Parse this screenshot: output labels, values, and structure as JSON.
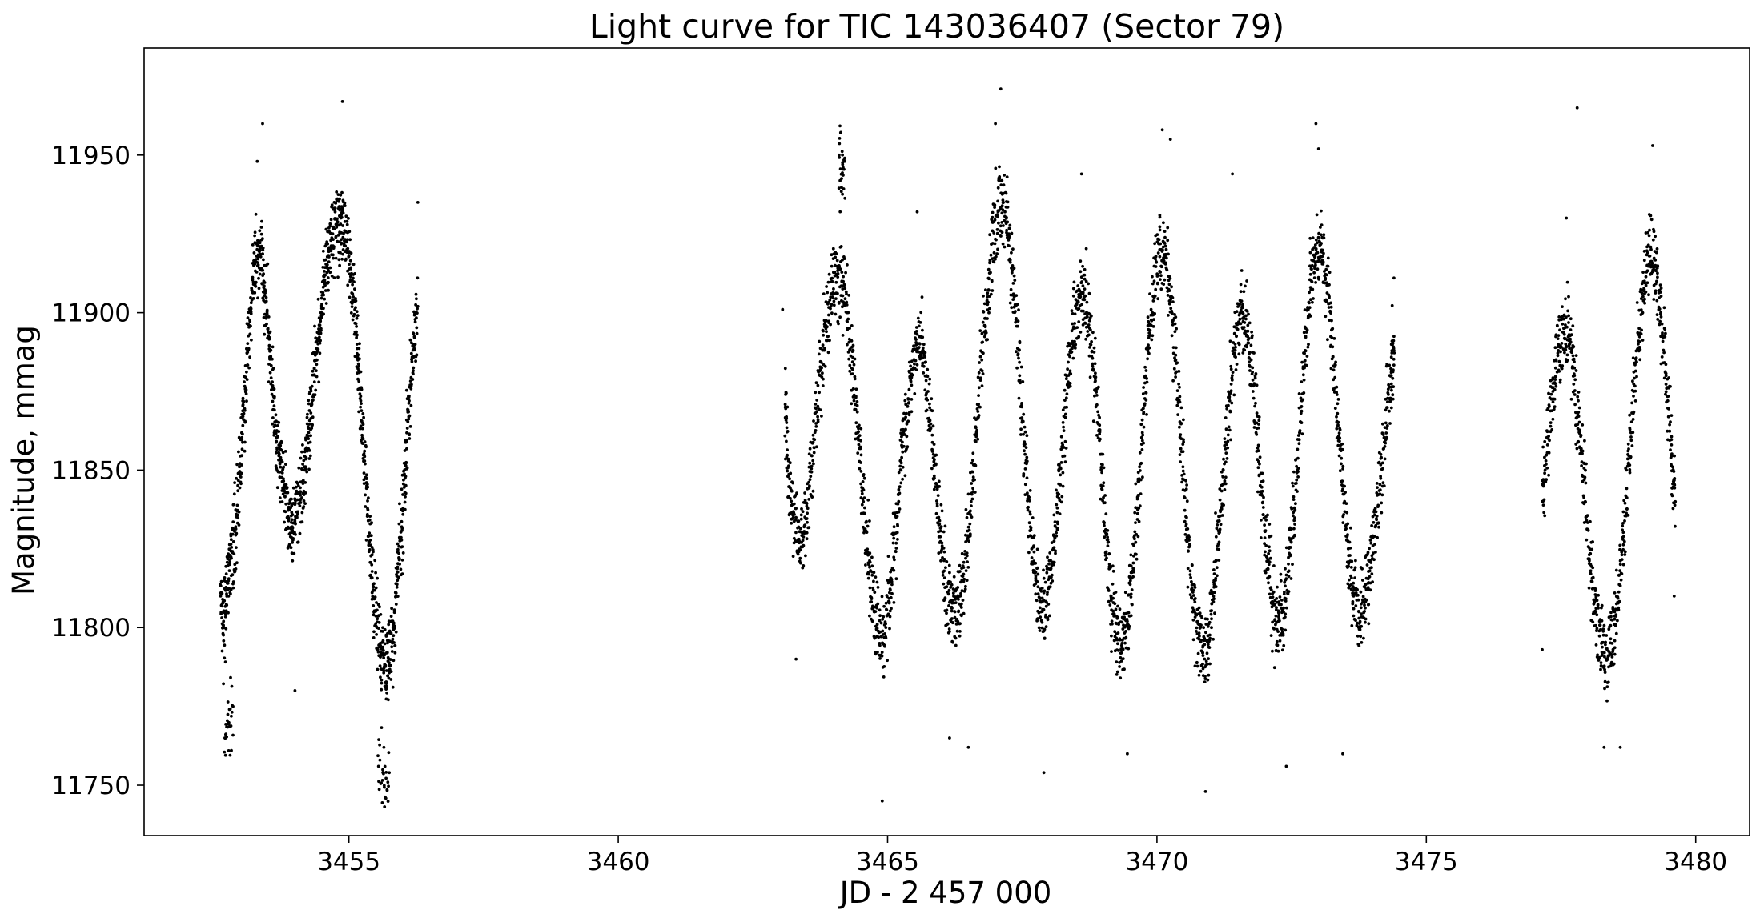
{
  "chart_data": {
    "type": "scatter",
    "title": "Light curve for TIC 143036407 (Sector 79)",
    "xlabel": "JD - 2 457 000",
    "ylabel": "Magnitude, mmag",
    "xlim": [
      3451.2,
      3481.0
    ],
    "ylim": [
      11734.0,
      11984.0
    ],
    "x_ticks": [
      {
        "value": 3455,
        "label": "3455"
      },
      {
        "value": 3460,
        "label": "3460"
      },
      {
        "value": 3465,
        "label": "3465"
      },
      {
        "value": 3470,
        "label": "3470"
      },
      {
        "value": 3475,
        "label": "3475"
      },
      {
        "value": 3480,
        "label": "3480"
      }
    ],
    "y_ticks": [
      {
        "value": 11750,
        "label": "11750"
      },
      {
        "value": 11800,
        "label": "11800"
      },
      {
        "value": 11850,
        "label": "11850"
      },
      {
        "value": 11900,
        "label": "11900"
      },
      {
        "value": 11950,
        "label": "11950"
      }
    ],
    "grid": false,
    "legend": "none",
    "marker_color": "#000000",
    "series": [
      {
        "points": [
          [
            3452.62,
            11810
          ],
          [
            3452.68,
            11800
          ],
          [
            3452.75,
            11812
          ],
          [
            3452.82,
            11822
          ],
          [
            3452.9,
            11832
          ],
          [
            3452.98,
            11848
          ],
          [
            3453.05,
            11868
          ],
          [
            3453.12,
            11888
          ],
          [
            3453.2,
            11904
          ],
          [
            3453.28,
            11918
          ],
          [
            3453.35,
            11920
          ],
          [
            3453.42,
            11910
          ],
          [
            3453.5,
            11895
          ],
          [
            3453.58,
            11878
          ],
          [
            3453.65,
            11862
          ],
          [
            3453.72,
            11852
          ],
          [
            3453.8,
            11845
          ],
          [
            3453.88,
            11838
          ],
          [
            3453.95,
            11832
          ],
          [
            3454.02,
            11835
          ],
          [
            3454.1,
            11842
          ],
          [
            3454.18,
            11850
          ],
          [
            3454.25,
            11860
          ],
          [
            3454.32,
            11872
          ],
          [
            3454.4,
            11885
          ],
          [
            3454.48,
            11900
          ],
          [
            3454.55,
            11912
          ],
          [
            3454.62,
            11920
          ],
          [
            3454.7,
            11925
          ],
          [
            3454.78,
            11928
          ],
          [
            3454.85,
            11930
          ],
          [
            3454.92,
            11926
          ],
          [
            3455.0,
            11918
          ],
          [
            3455.08,
            11905
          ],
          [
            3455.15,
            11890
          ],
          [
            3455.22,
            11872
          ],
          [
            3455.3,
            11852
          ],
          [
            3455.38,
            11830
          ],
          [
            3455.45,
            11812
          ],
          [
            3455.52,
            11800
          ],
          [
            3455.6,
            11792
          ],
          [
            3455.68,
            11788
          ],
          [
            3455.75,
            11790
          ],
          [
            3455.82,
            11800
          ],
          [
            3455.9,
            11815
          ],
          [
            3455.98,
            11832
          ],
          [
            3456.05,
            11852
          ],
          [
            3456.12,
            11872
          ],
          [
            3456.2,
            11890
          ],
          [
            3456.28,
            11902
          ],
          [
            3452.7,
            11765
          ],
          [
            3452.85,
            11775
          ],
          [
            3453.4,
            11960
          ],
          [
            3454.0,
            11780
          ],
          [
            3454.88,
            11967
          ],
          [
            3455.55,
            11756
          ],
          [
            3455.75,
            11754
          ],
          [
            3456.28,
            11935
          ],
          [
            3453.3,
            11948
          ],
          [
            3455.65,
            11762
          ],
          [
            3463.1,
            11870
          ],
          [
            3463.15,
            11848
          ],
          [
            3463.25,
            11835
          ],
          [
            3463.35,
            11828
          ],
          [
            3463.45,
            11832
          ],
          [
            3463.55,
            11845
          ],
          [
            3463.65,
            11862
          ],
          [
            3463.75,
            11880
          ],
          [
            3463.85,
            11896
          ],
          [
            3463.95,
            11906
          ],
          [
            3464.05,
            11912
          ],
          [
            3464.15,
            11910
          ],
          [
            3464.25,
            11900
          ],
          [
            3464.35,
            11882
          ],
          [
            3464.45,
            11862
          ],
          [
            3464.55,
            11840
          ],
          [
            3464.65,
            11820
          ],
          [
            3464.75,
            11805
          ],
          [
            3464.85,
            11795
          ],
          [
            3464.95,
            11798
          ],
          [
            3465.05,
            11812
          ],
          [
            3465.15,
            11830
          ],
          [
            3465.25,
            11850
          ],
          [
            3465.35,
            11868
          ],
          [
            3465.45,
            11882
          ],
          [
            3465.55,
            11890
          ],
          [
            3465.65,
            11888
          ],
          [
            3465.75,
            11875
          ],
          [
            3465.85,
            11855
          ],
          [
            3465.95,
            11835
          ],
          [
            3466.05,
            11818
          ],
          [
            3466.15,
            11808
          ],
          [
            3466.25,
            11805
          ],
          [
            3466.35,
            11810
          ],
          [
            3466.45,
            11822
          ],
          [
            3466.55,
            11840
          ],
          [
            3466.65,
            11862
          ],
          [
            3466.75,
            11885
          ],
          [
            3466.85,
            11905
          ],
          [
            3466.95,
            11922
          ],
          [
            3467.05,
            11932
          ],
          [
            3467.15,
            11935
          ],
          [
            3467.25,
            11925
          ],
          [
            3467.35,
            11905
          ],
          [
            3467.45,
            11880
          ],
          [
            3467.55,
            11855
          ],
          [
            3467.65,
            11832
          ],
          [
            3467.75,
            11815
          ],
          [
            3467.85,
            11805
          ],
          [
            3467.95,
            11808
          ],
          [
            3468.05,
            11820
          ],
          [
            3468.15,
            11838
          ],
          [
            3468.25,
            11858
          ],
          [
            3468.35,
            11878
          ],
          [
            3468.45,
            11895
          ],
          [
            3468.55,
            11905
          ],
          [
            3468.65,
            11905
          ],
          [
            3468.75,
            11895
          ],
          [
            3468.85,
            11878
          ],
          [
            3468.95,
            11855
          ],
          [
            3469.05,
            11830
          ],
          [
            3469.15,
            11810
          ],
          [
            3469.25,
            11798
          ],
          [
            3469.35,
            11795
          ],
          [
            3469.45,
            11802
          ],
          [
            3469.55,
            11818
          ],
          [
            3469.65,
            11842
          ],
          [
            3469.75,
            11868
          ],
          [
            3469.85,
            11892
          ],
          [
            3469.95,
            11910
          ],
          [
            3470.05,
            11920
          ],
          [
            3470.15,
            11918
          ],
          [
            3470.25,
            11905
          ],
          [
            3470.35,
            11885
          ],
          [
            3470.45,
            11860
          ],
          [
            3470.55,
            11835
          ],
          [
            3470.65,
            11812
          ],
          [
            3470.75,
            11798
          ],
          [
            3470.85,
            11792
          ],
          [
            3470.95,
            11796
          ],
          [
            3471.05,
            11810
          ],
          [
            3471.15,
            11830
          ],
          [
            3471.25,
            11852
          ],
          [
            3471.35,
            11872
          ],
          [
            3471.45,
            11890
          ],
          [
            3471.55,
            11900
          ],
          [
            3471.65,
            11898
          ],
          [
            3471.75,
            11885
          ],
          [
            3471.85,
            11865
          ],
          [
            3471.95,
            11842
          ],
          [
            3472.05,
            11822
          ],
          [
            3472.15,
            11808
          ],
          [
            3472.25,
            11802
          ],
          [
            3472.35,
            11805
          ],
          [
            3472.45,
            11818
          ],
          [
            3472.55,
            11838
          ],
          [
            3472.65,
            11862
          ],
          [
            3472.75,
            11888
          ],
          [
            3472.85,
            11908
          ],
          [
            3472.95,
            11920
          ],
          [
            3473.05,
            11922
          ],
          [
            3473.15,
            11912
          ],
          [
            3473.25,
            11892
          ],
          [
            3473.35,
            11868
          ],
          [
            3473.45,
            11845
          ],
          [
            3473.55,
            11825
          ],
          [
            3473.65,
            11810
          ],
          [
            3473.75,
            11805
          ],
          [
            3473.85,
            11808
          ],
          [
            3473.95,
            11818
          ],
          [
            3474.05,
            11832
          ],
          [
            3474.15,
            11848
          ],
          [
            3474.25,
            11865
          ],
          [
            3474.35,
            11880
          ],
          [
            3474.4,
            11888
          ],
          [
            3463.05,
            11901
          ],
          [
            3463.3,
            11790
          ],
          [
            3464.1,
            11950
          ],
          [
            3464.2,
            11948
          ],
          [
            3464.9,
            11745
          ],
          [
            3465.55,
            11932
          ],
          [
            3466.15,
            11765
          ],
          [
            3466.5,
            11762
          ],
          [
            3467.1,
            11971
          ],
          [
            3467.0,
            11960
          ],
          [
            3467.9,
            11754
          ],
          [
            3468.6,
            11944
          ],
          [
            3469.45,
            11760
          ],
          [
            3470.1,
            11958
          ],
          [
            3470.9,
            11748
          ],
          [
            3471.4,
            11944
          ],
          [
            3472.4,
            11756
          ],
          [
            3472.95,
            11960
          ],
          [
            3473.45,
            11760
          ],
          [
            3474.4,
            11911
          ],
          [
            3470.25,
            11955
          ],
          [
            3473.0,
            11952
          ],
          [
            3477.15,
            11840
          ],
          [
            3477.25,
            11858
          ],
          [
            3477.35,
            11875
          ],
          [
            3477.45,
            11888
          ],
          [
            3477.55,
            11895
          ],
          [
            3477.65,
            11893
          ],
          [
            3477.75,
            11880
          ],
          [
            3477.85,
            11862
          ],
          [
            3477.95,
            11840
          ],
          [
            3478.05,
            11820
          ],
          [
            3478.15,
            11805
          ],
          [
            3478.25,
            11795
          ],
          [
            3478.35,
            11790
          ],
          [
            3478.45,
            11795
          ],
          [
            3478.55,
            11808
          ],
          [
            3478.65,
            11828
          ],
          [
            3478.75,
            11852
          ],
          [
            3478.85,
            11875
          ],
          [
            3478.95,
            11895
          ],
          [
            3479.05,
            11910
          ],
          [
            3479.15,
            11918
          ],
          [
            3479.25,
            11915
          ],
          [
            3479.35,
            11900
          ],
          [
            3479.45,
            11880
          ],
          [
            3479.55,
            11858
          ],
          [
            3479.62,
            11840
          ],
          [
            3477.15,
            11793
          ],
          [
            3477.6,
            11930
          ],
          [
            3477.8,
            11965
          ],
          [
            3478.3,
            11762
          ],
          [
            3478.6,
            11762
          ],
          [
            3479.2,
            11953
          ],
          [
            3479.6,
            11810
          ]
        ]
      }
    ]
  }
}
